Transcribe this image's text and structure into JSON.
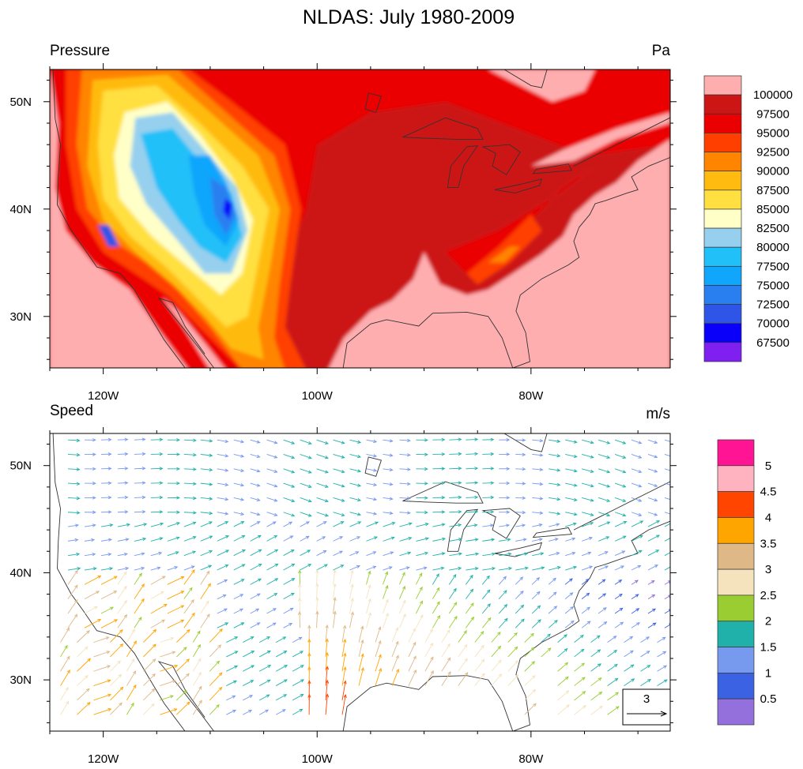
{
  "title": "NLDAS: July 1980-2009",
  "panels": [
    {
      "left_label": "Pressure",
      "right_label": "Pa",
      "lon_labels": [
        "120W",
        "100W",
        "80W"
      ],
      "lat_labels": [
        "50N",
        "40N",
        "30N"
      ],
      "legend": {
        "labels": [
          "100000",
          "97500",
          "95000",
          "92500",
          "90000",
          "87500",
          "85000",
          "82500",
          "80000",
          "77500",
          "75000",
          "72500",
          "70000",
          "67500"
        ],
        "colors": [
          "#ffaeb0",
          "#cc1515",
          "#ea0000",
          "#ff3f00",
          "#ff8400",
          "#ffbb10",
          "#ffe040",
          "#ffffc8",
          "#96d0ee",
          "#22c0f8",
          "#10a6fc",
          "#2a7ff0",
          "#2e55e8",
          "#0a00fa",
          "#8020f0"
        ]
      }
    },
    {
      "left_label": "Speed",
      "right_label": "m/s",
      "lon_labels": [
        "120W",
        "100W",
        "80W"
      ],
      "lat_labels": [
        "50N",
        "40N",
        "30N"
      ],
      "legend": {
        "labels": [
          "5",
          "4.5",
          "4",
          "3.5",
          "3",
          "2.5",
          "2",
          "1.5",
          "1",
          "0.5"
        ],
        "colors": [
          "#ff1493",
          "#ffb3c1",
          "#ff4500",
          "#ffa500",
          "#deb887",
          "#f5e3be",
          "#9acd32",
          "#20b2aa",
          "#7799ee",
          "#3b62e2",
          "#9370db"
        ]
      },
      "reference_vector": {
        "label": "3",
        "value": 3
      }
    }
  ]
}
